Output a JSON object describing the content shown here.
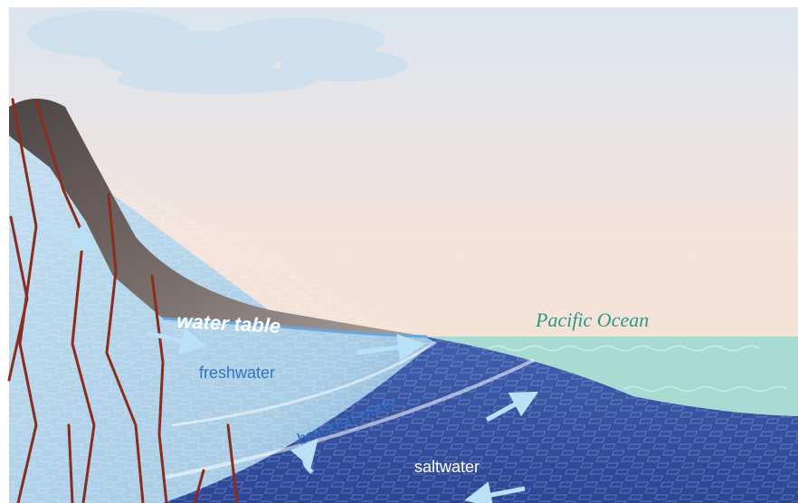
{
  "labels": {
    "water_table": "water table",
    "pacific_ocean": "Pacific Ocean",
    "freshwater": "freshwater",
    "brackish_water": "brackish water",
    "saltwater": "saltwater"
  }
}
